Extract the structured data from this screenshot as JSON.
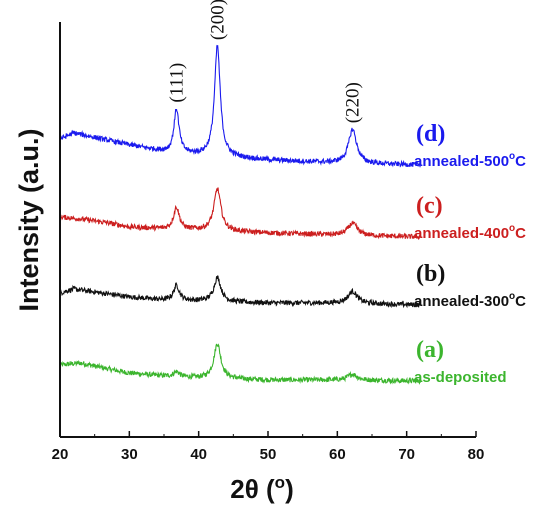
{
  "chart_data": {
    "type": "line",
    "xlabel": "2θ (",
    "xlabel_unit": "o",
    "xlabel_close": ")",
    "ylabel": "Intensity (a.u.)",
    "xlim": [
      20,
      80
    ],
    "x_ticks": [
      "20",
      "30",
      "40",
      "50",
      "60",
      "70",
      "80"
    ],
    "y_ticks_shown": false,
    "grid": false,
    "legend": "inline labels at right end of each trace",
    "peak_annotations": [
      {
        "label": "(111)",
        "x": 36.8
      },
      {
        "label": "(200)",
        "x": 42.7
      },
      {
        "label": "(220)",
        "x": 62.2
      }
    ],
    "series": [
      {
        "letter": "(a)",
        "name": "as-deposited",
        "sup": "",
        "name_suffix": "",
        "color": "#3cb52e",
        "offset": 0,
        "background": [
          [
            20,
            18
          ],
          [
            23,
            20
          ],
          [
            27,
            14
          ],
          [
            30,
            10
          ],
          [
            35,
            7
          ],
          [
            40,
            5
          ],
          [
            50,
            3
          ],
          [
            60,
            3
          ],
          [
            72,
            2
          ]
        ],
        "peaks": [
          {
            "x": 36.8,
            "height": 5,
            "width": 0.5
          },
          {
            "x": 42.7,
            "height": 35,
            "width": 0.6
          },
          {
            "x": 62.2,
            "height": 6,
            "width": 0.8
          }
        ]
      },
      {
        "letter": "(b)",
        "name": "annealed-300",
        "sup": "o",
        "name_suffix": "C",
        "color": "#111111",
        "offset": 80,
        "background": [
          [
            20,
            10
          ],
          [
            22,
            14
          ],
          [
            26,
            10
          ],
          [
            30,
            6
          ],
          [
            35,
            3
          ],
          [
            40,
            2
          ],
          [
            50,
            0
          ],
          [
            60,
            0
          ],
          [
            72,
            -2
          ]
        ],
        "peaks": [
          {
            "x": 36.8,
            "height": 15,
            "width": 0.5
          },
          {
            "x": 42.7,
            "height": 24,
            "width": 0.6
          },
          {
            "x": 62.2,
            "height": 12,
            "width": 0.8
          }
        ]
      },
      {
        "letter": "(c)",
        "name": "annealed-400",
        "sup": "o",
        "name_suffix": "C",
        "color": "#cc1f1f",
        "offset": 152,
        "background": [
          [
            20,
            14
          ],
          [
            23,
            12
          ],
          [
            27,
            8
          ],
          [
            30,
            4
          ],
          [
            35,
            2
          ],
          [
            40,
            1
          ],
          [
            50,
            -2
          ],
          [
            60,
            -4
          ],
          [
            72,
            -6
          ]
        ],
        "peaks": [
          {
            "x": 36.8,
            "height": 22,
            "width": 0.5
          },
          {
            "x": 42.7,
            "height": 42,
            "width": 0.6
          },
          {
            "x": 62.2,
            "height": 12,
            "width": 0.8
          }
        ]
      },
      {
        "letter": "(d)",
        "name": "annealed-500",
        "sup": "o",
        "name_suffix": "C",
        "color": "#1a1aee",
        "offset": 228,
        "background": [
          [
            20,
            16
          ],
          [
            22,
            22
          ],
          [
            26,
            16
          ],
          [
            30,
            10
          ],
          [
            33,
            6
          ],
          [
            36,
            2
          ],
          [
            40,
            0
          ],
          [
            50,
            -5
          ],
          [
            60,
            -8
          ],
          [
            72,
            -10
          ]
        ],
        "peaks": [
          {
            "x": 36.8,
            "height": 44,
            "width": 0.45
          },
          {
            "x": 42.7,
            "height": 110,
            "width": 0.5
          },
          {
            "x": 62.2,
            "height": 34,
            "width": 0.7
          }
        ]
      }
    ]
  }
}
